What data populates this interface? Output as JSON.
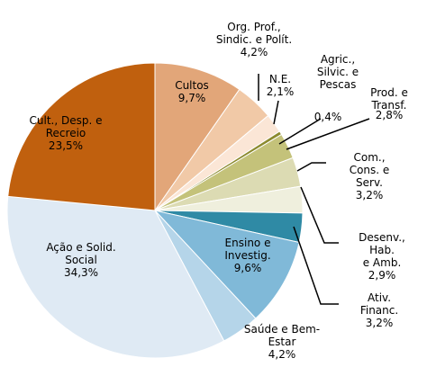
{
  "chart_data": {
    "type": "pie",
    "categories": [
      "Cultos",
      "Org. Prof.,\nSindic. e Polít.",
      "N.E.",
      "Agric.,\nSilvic. e\nPescas",
      "Prod. e\nTransf.",
      "Com., Cons. e\nServ.",
      "Desenv., Hab.\ne Amb.",
      "Ativ. Financ.",
      "Ensino e\nInvestig.",
      "Saúde e Bem-\nEstar",
      "Ação e Solid.\nSocial",
      "Cult., Desp. e\nRecreio"
    ],
    "values": [
      9.7,
      4.2,
      2.1,
      0.4,
      2.8,
      3.2,
      2.9,
      3.2,
      9.6,
      4.2,
      34.3,
      23.5
    ],
    "value_labels": [
      "9,7%",
      "4,2%",
      "2,1%",
      "0,4%",
      "2,8%",
      "3,2%",
      "2,9%",
      "3,2%",
      "9,6%",
      "4,2%",
      "34,3%",
      "23,5%"
    ],
    "colors": [
      "#e2a679",
      "#f1c9a7",
      "#fbe6d6",
      "#8c8a2e",
      "#c4c27a",
      "#dcdbb3",
      "#efefdd",
      "#2f8aa5",
      "#80b9d8",
      "#b5d5e9",
      "#dfeaf4",
      "#c0600e"
    ]
  }
}
